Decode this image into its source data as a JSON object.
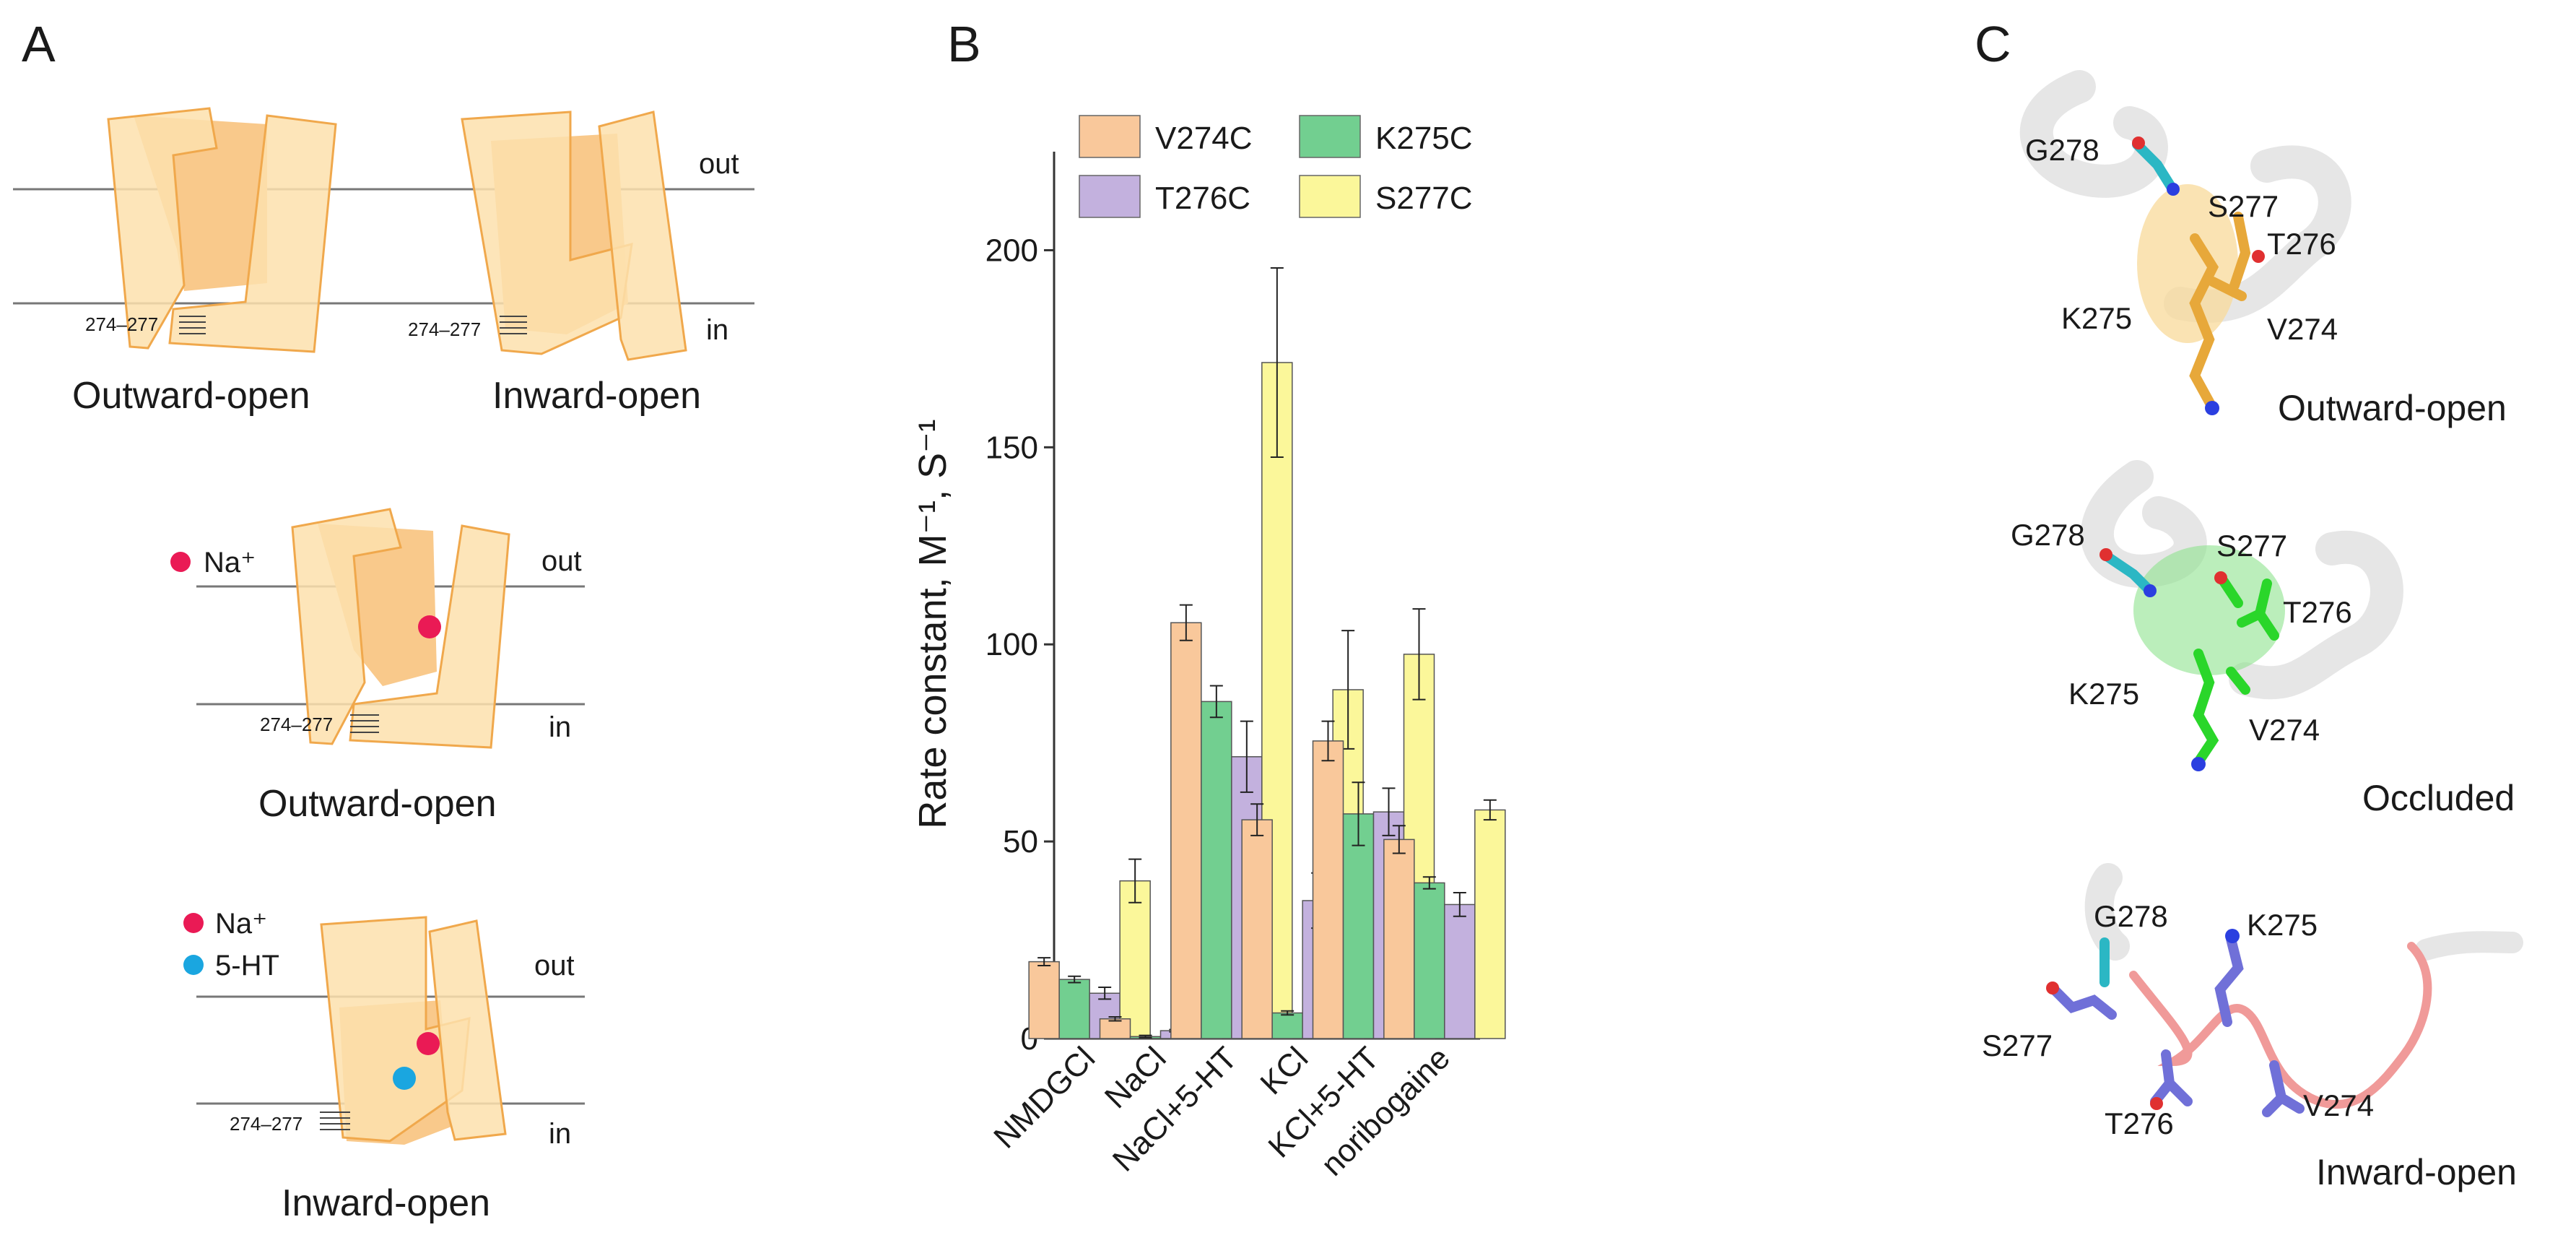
{
  "panels": {
    "a": "A",
    "b": "B",
    "c": "C"
  },
  "schematic": {
    "side_out": "out",
    "side_in": "in",
    "residue_range": "274–277",
    "state_outward": "Outward-open",
    "state_inward": "Inward-open",
    "na_label": "Na⁺",
    "serotonin_label": "5-HT"
  },
  "colors": {
    "V274C": "#f9c89b",
    "K275C": "#72cf90",
    "T276C": "#c3b1de",
    "S277C": "#fbf79a",
    "na": "#ea1a55",
    "ht": "#1aa6e0",
    "box_light": "#fde0ad",
    "box_dark": "#f9c98b",
    "box_edge": "#f0a84c"
  },
  "chart_data": {
    "type": "bar",
    "title": "",
    "xlabel": "",
    "ylabel": "Rate constant, M⁻¹, S⁻¹",
    "ylim": [
      0,
      225
    ],
    "yticks": [
      0,
      50,
      100,
      150,
      200
    ],
    "categories": [
      "NMDGCl",
      "NaCl",
      "NaCl+5-HT",
      "KCl",
      "KCl+5-HT",
      "noribogaine"
    ],
    "legend_position": "top-left",
    "series": [
      {
        "name": "V274C",
        "values": [
          19.5,
          5,
          105.5,
          55.5,
          75.5,
          50.5
        ],
        "errors": [
          1,
          0.5,
          4.5,
          4,
          5,
          3.5
        ]
      },
      {
        "name": "K275C",
        "values": [
          15,
          0.5,
          85.5,
          6.5,
          57,
          39.5
        ],
        "errors": [
          0.8,
          0.3,
          4,
          0.5,
          8,
          1.5
        ]
      },
      {
        "name": "T276C",
        "values": [
          11.5,
          2,
          71.5,
          35,
          57.5,
          34
        ],
        "errors": [
          1.5,
          0.3,
          9,
          7,
          6,
          3
        ]
      },
      {
        "name": "S277C",
        "values": [
          40,
          16.5,
          171.5,
          88.5,
          97.5,
          58
        ],
        "errors": [
          5.5,
          1,
          24,
          15,
          11.5,
          2.5
        ]
      }
    ]
  },
  "structures": {
    "g278": "G278",
    "s277": "S277",
    "t276": "T276",
    "k275": "K275",
    "v274": "V274",
    "outward": "Outward-open",
    "occluded": "Occluded",
    "inward": "Inward-open"
  }
}
